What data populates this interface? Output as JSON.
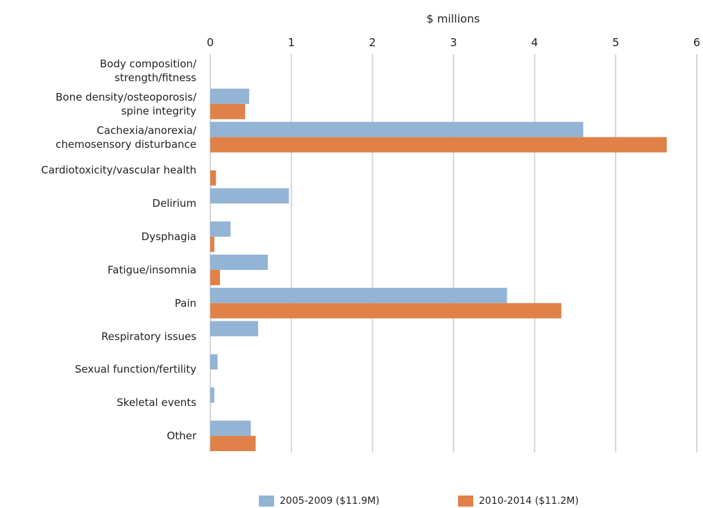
{
  "chart_data": {
    "type": "bar",
    "orientation": "horizontal",
    "x_label": "$ millions",
    "categories": [
      "Body composition/\nstrength/fitness",
      "Bone density/osteoporosis/\nspine integrity",
      "Cachexia/anorexia/\nchemosensory disturbance",
      "Cardiotoxicity/vascular health",
      "Delirium",
      "Dysphagia",
      "Fatigue/insomnia",
      "Pain",
      "Respiratory issues",
      "Sexual function/fertility",
      "Skeletal events",
      "Other"
    ],
    "series": [
      {
        "name": "2005-2009 ($11.9M)",
        "color": "#93b4d4",
        "values": [
          0,
          0.48,
          4.6,
          0,
          0.97,
          0.25,
          0.71,
          3.66,
          0.59,
          0.09,
          0.05,
          0.5
        ]
      },
      {
        "name": "2010-2014 ($11.2M)",
        "color": "#df8148",
        "values": [
          0,
          0.43,
          5.63,
          0.07,
          0,
          0.05,
          0.12,
          4.33,
          0,
          0,
          0,
          0.56
        ]
      }
    ],
    "xlim": [
      0,
      6
    ],
    "xticks": [
      0,
      1,
      2,
      3,
      4,
      5,
      6
    ],
    "grid": true,
    "legend": "bottom"
  }
}
